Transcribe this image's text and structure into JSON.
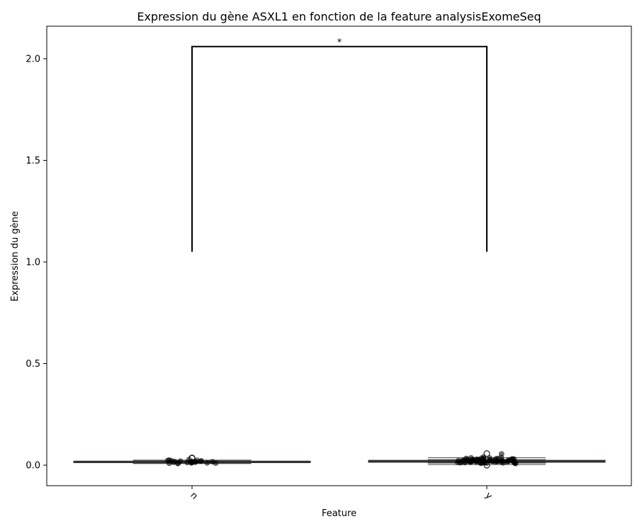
{
  "chart_data": {
    "type": "box",
    "title": "Expression du gène ASXL1 en fonction de la feature analysisExomeSeq",
    "xlabel": "Feature",
    "ylabel": "Expression du gène",
    "categories": [
      "n",
      "y"
    ],
    "ylim": [
      -0.1,
      2.16
    ],
    "yticks": [
      0.0,
      0.5,
      1.0,
      1.5,
      2.0
    ],
    "ytick_labels": [
      "0.0",
      "0.5",
      "1.0",
      "1.5",
      "2.0"
    ],
    "grid": false,
    "x_tick_rotation": 45,
    "boxes": [
      {
        "category": "n",
        "q1": 0.012,
        "median": 0.016,
        "q3": 0.02,
        "whisker_low": 0.008,
        "whisker_high": 0.025,
        "outliers": [
          0.036,
          0.034
        ]
      },
      {
        "category": "y",
        "q1": 0.014,
        "median": 0.019,
        "q3": 0.024,
        "whisker_low": 0.003,
        "whisker_high": 0.037,
        "outliers": [
          0.057,
          0.0
        ]
      }
    ],
    "points": {
      "n": [
        0.012,
        0.015,
        0.022,
        0.01,
        0.028,
        0.018,
        0.009,
        0.017,
        0.024,
        0.013,
        0.02,
        0.011,
        0.019,
        0.025,
        0.015,
        0.008,
        0.021,
        0.014,
        0.016,
        0.012,
        0.018,
        0.023,
        0.01
      ],
      "y": [
        0.01,
        0.025,
        0.015,
        0.03,
        0.02,
        0.012,
        0.035,
        0.018,
        0.022,
        0.028,
        0.008,
        0.04,
        0.016,
        0.024,
        0.019,
        0.033,
        0.011,
        0.027,
        0.021,
        0.014,
        0.03,
        0.017,
        0.026,
        0.013,
        0.036,
        0.02,
        0.009,
        0.023,
        0.031,
        0.018,
        0.015,
        0.028,
        0.022,
        0.012,
        0.034,
        0.019,
        0.025,
        0.016,
        0.029,
        0.021,
        0.01,
        0.032,
        0.017,
        0.024,
        0.014,
        0.027,
        0.02,
        0.038,
        0.013,
        0.026,
        0.018,
        0.023,
        0.011,
        0.03,
        0.019,
        0.055,
        0.016,
        0.025,
        0.022,
        0.015,
        0.028,
        0.02,
        0.012,
        0.033,
        0.017,
        0.024,
        0.021,
        0.014,
        0.027,
        0.019
      ]
    },
    "significance": {
      "between": [
        "n",
        "y"
      ],
      "y_bottom": 1.05,
      "y_top": 2.06,
      "label": "*"
    }
  }
}
